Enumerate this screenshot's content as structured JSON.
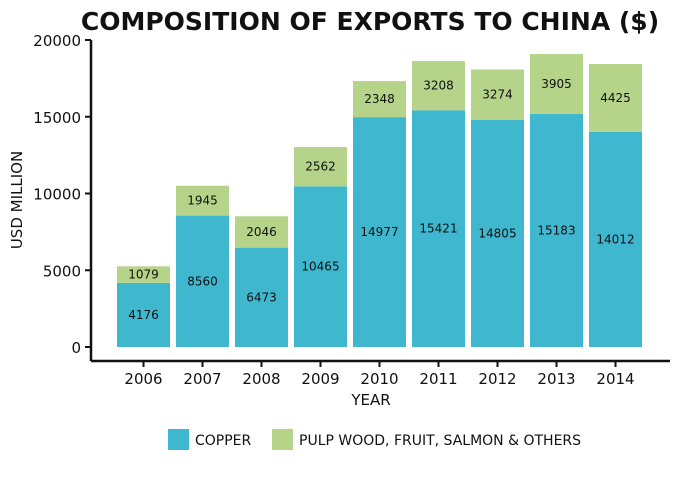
{
  "chart_data": {
    "type": "bar",
    "stacked": true,
    "title": "COMPOSITION OF EXPORTS TO CHINA ($)",
    "xlabel": "YEAR",
    "ylabel": "USD MILLION",
    "categories": [
      "2006",
      "2007",
      "2008",
      "2009",
      "2010",
      "2011",
      "2012",
      "2013",
      "2014"
    ],
    "series": [
      {
        "name": "COPPER",
        "color": "#3fb8cf",
        "values": [
          4176,
          8560,
          6473,
          10465,
          14977,
          15421,
          14805,
          15183,
          14012
        ]
      },
      {
        "name": "PULP WOOD, FRUIT, SALMON & OTHERS",
        "color": "#b5d48a",
        "values": [
          1079,
          1945,
          2046,
          2562,
          2348,
          3208,
          3274,
          3905,
          4425
        ]
      }
    ],
    "ylim": [
      0,
      20000
    ],
    "yticks": [
      0,
      5000,
      10000,
      15000,
      20000
    ],
    "grid": false,
    "legend": "bottom"
  }
}
